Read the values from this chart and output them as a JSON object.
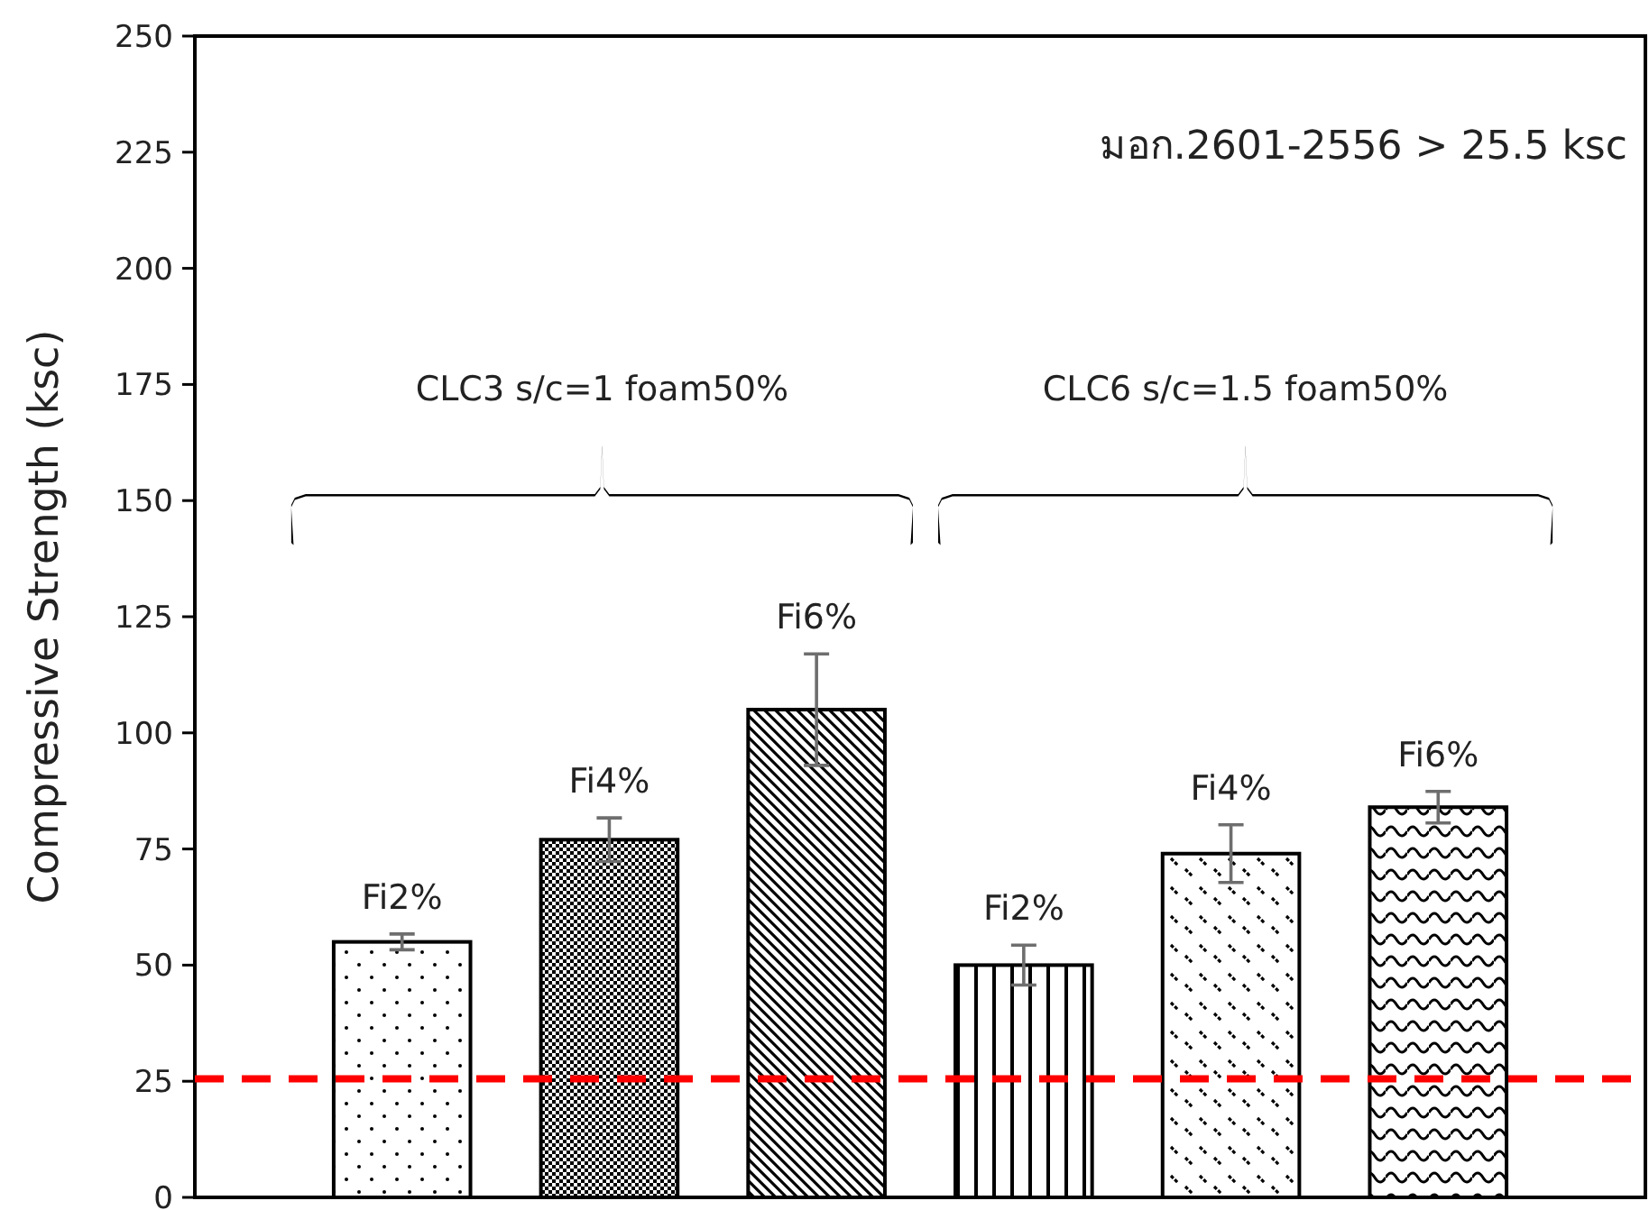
{
  "chart_data": {
    "type": "bar",
    "ylabel": "Compressive Strength (ksc)",
    "categories": [
      "Fi2%",
      "Fi4%",
      "Fi6%",
      "Fi2%",
      "Fi4%",
      "Fi6%"
    ],
    "values": [
      55,
      77,
      105,
      50,
      74,
      84
    ],
    "errors": [
      1.7,
      4.7,
      12,
      4.3,
      6.2,
      3.4
    ],
    "colors": [
      "#000000",
      "#000000",
      "#000000",
      "#000000",
      "#000000",
      "#000000"
    ],
    "ylim": [
      0,
      250
    ],
    "yticks": [
      0,
      25,
      50,
      75,
      100,
      125,
      150,
      175,
      200,
      225,
      250
    ],
    "grid": false,
    "ref_lines": [
      {
        "axis": "y",
        "value": 25.5,
        "color": "#ff0000",
        "line_style": "dashed"
      }
    ],
    "annotations": [
      "CLC3 s/c=1 foam50%",
      "CLC6 s/c=1.5 foam50%",
      "มอก.2601-2556 > 25.5 ksc"
    ]
  }
}
